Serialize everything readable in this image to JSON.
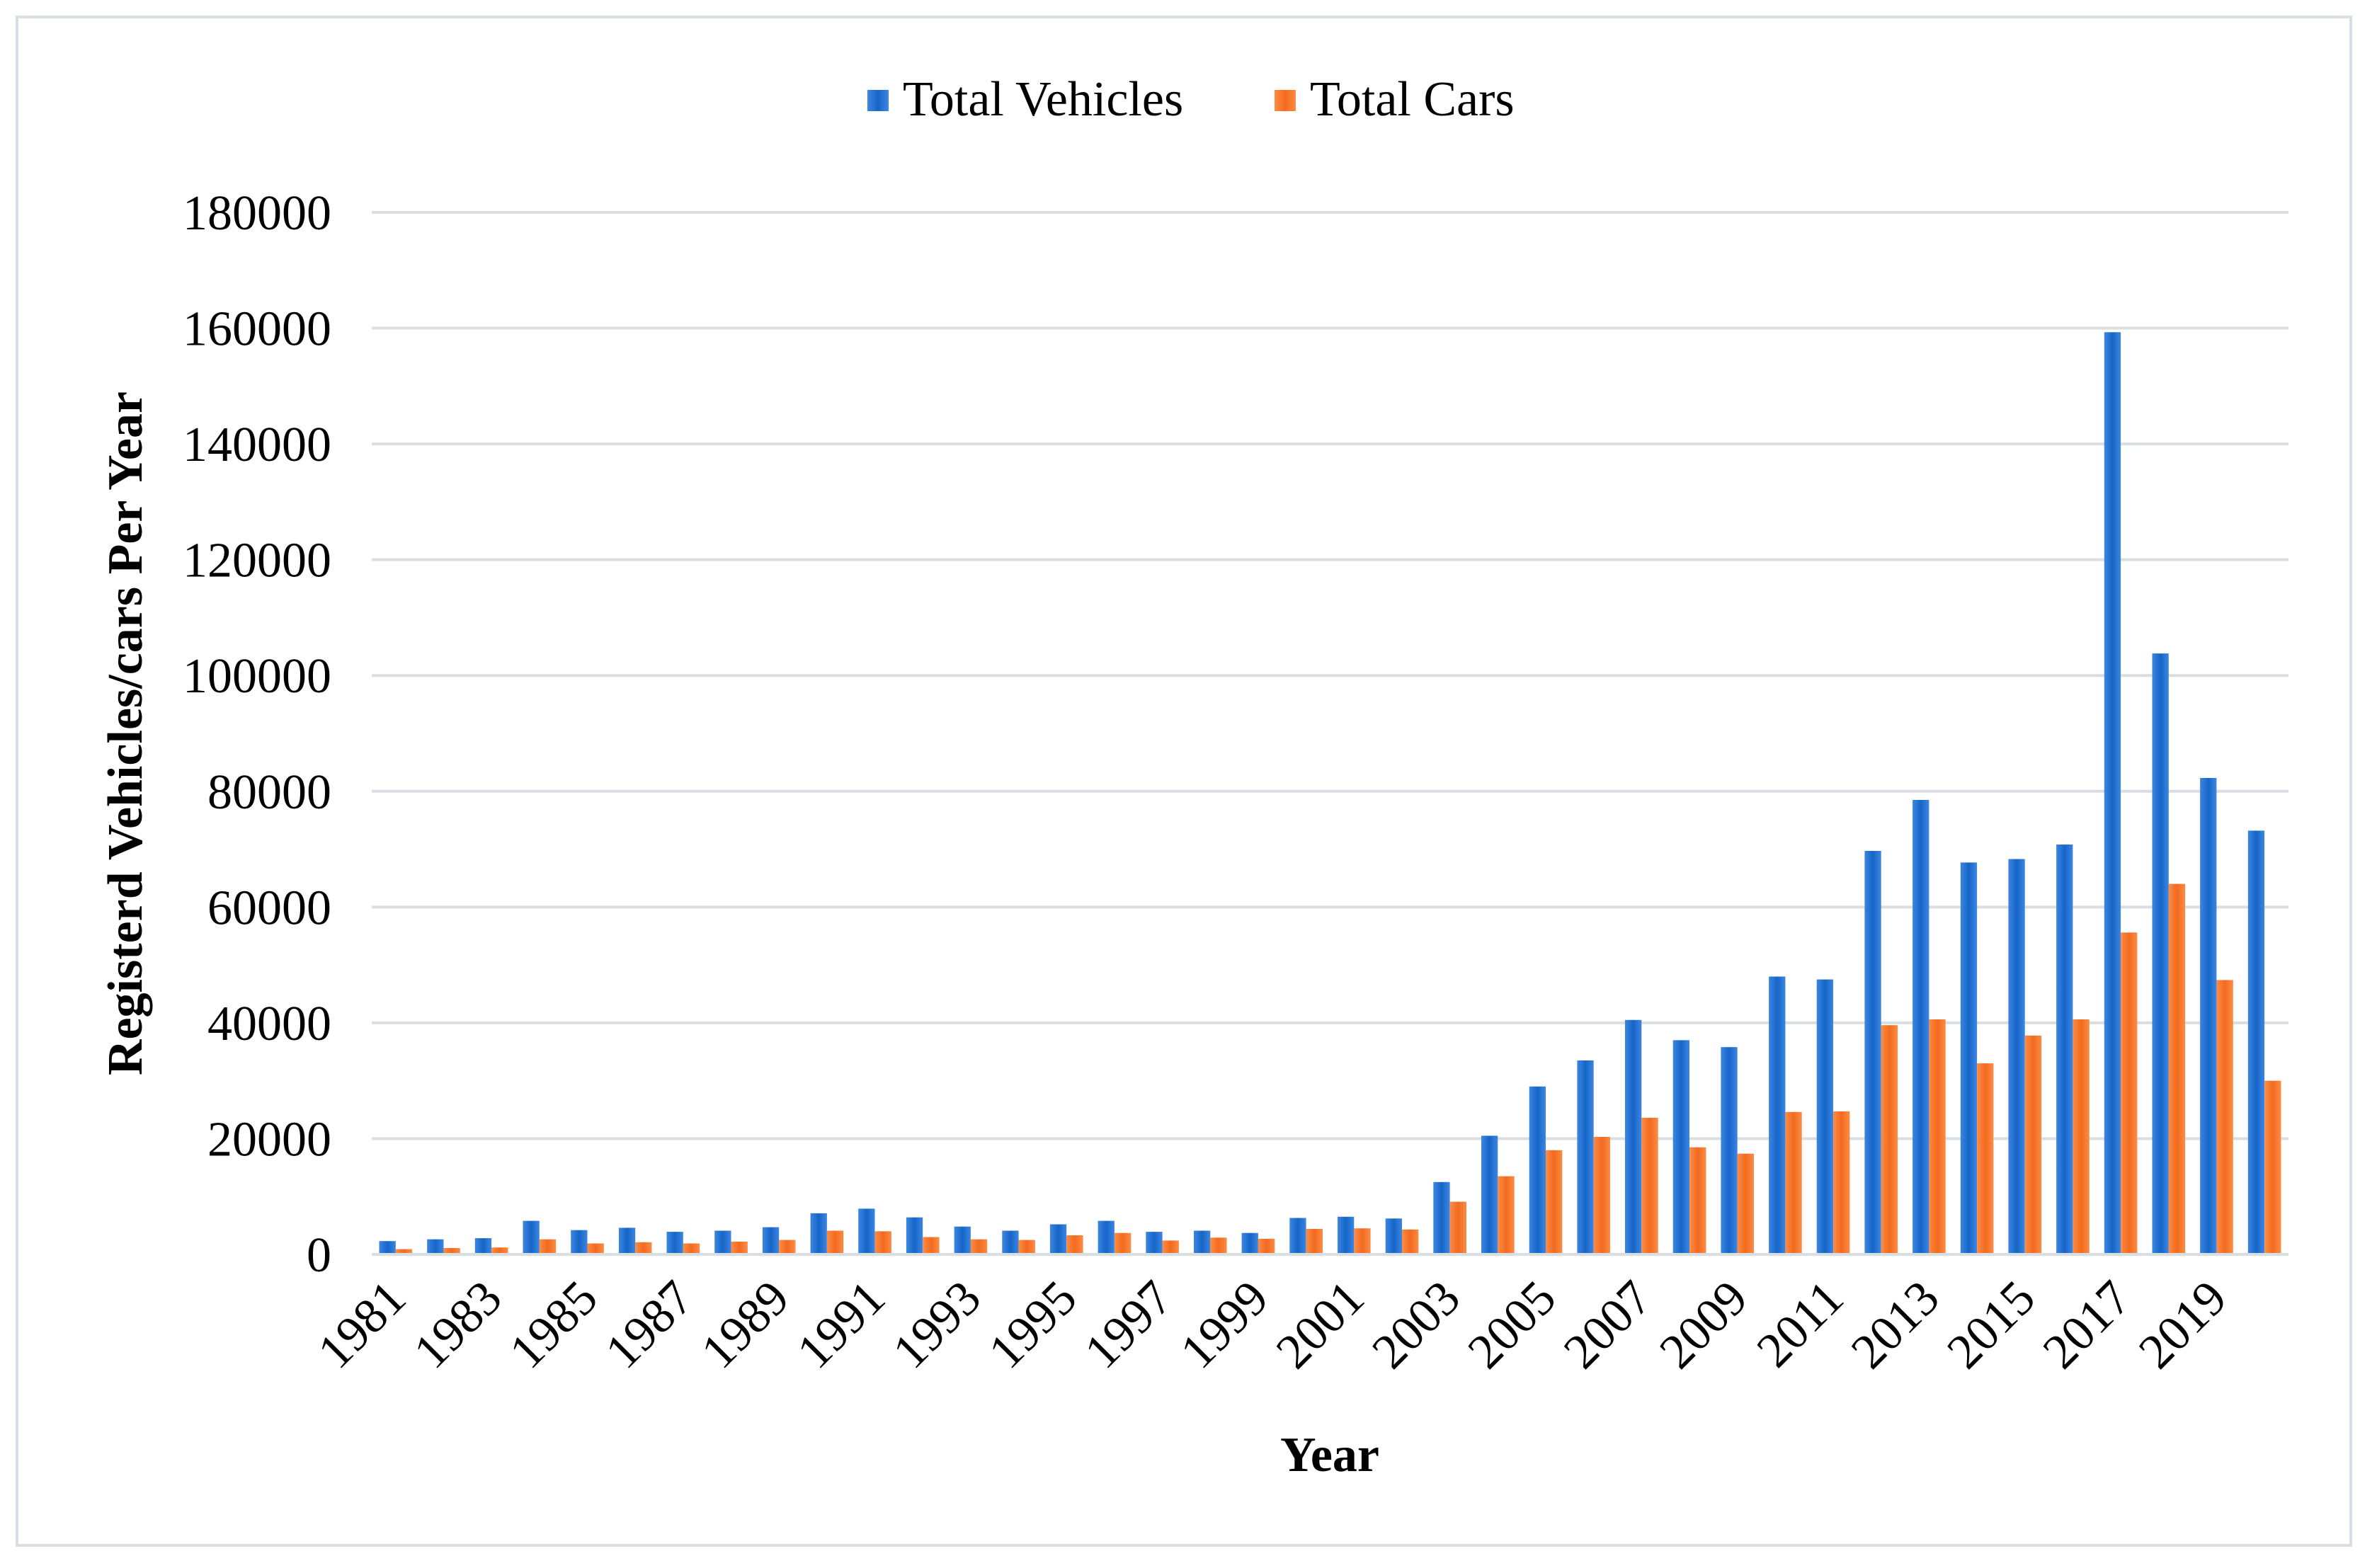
{
  "chart_data": {
    "type": "bar",
    "title": "",
    "xlabel": "Year",
    "ylabel": "Registerd Vehicles/cars Per Year",
    "ylim": [
      0,
      180000
    ],
    "yticks": [
      0,
      20000,
      40000,
      60000,
      80000,
      100000,
      120000,
      140000,
      160000,
      180000
    ],
    "grid": true,
    "legend_position": "top-center",
    "categories": [
      "1981",
      "1982",
      "1983",
      "1984",
      "1985",
      "1986",
      "1987",
      "1988",
      "1989",
      "1990",
      "1991",
      "1992",
      "1993",
      "1994",
      "1995",
      "1996",
      "1997",
      "1998",
      "1999",
      "2000",
      "2001",
      "2002",
      "2003",
      "2004",
      "2005",
      "2006",
      "2007",
      "2008",
      "2009",
      "2010",
      "2011",
      "2012",
      "2013",
      "2014",
      "2015",
      "2016",
      "2017",
      "2018",
      "2019",
      "2020"
    ],
    "tick_labels": [
      "1981",
      "1983",
      "1985",
      "1987",
      "1989",
      "1991",
      "1993",
      "1995",
      "1997",
      "1999",
      "2001",
      "2003",
      "2005",
      "2007",
      "2009",
      "2011",
      "2013",
      "2015",
      "2017",
      "2019"
    ],
    "series": [
      {
        "name": "Total Vehicles",
        "color": "#1f6fd1",
        "values": [
          2300,
          2600,
          2800,
          5800,
          4200,
          4600,
          3900,
          4100,
          4700,
          7100,
          7900,
          6400,
          4800,
          4100,
          5200,
          5800,
          3900,
          4100,
          3700,
          6300,
          6500,
          6200,
          12500,
          20500,
          29000,
          33500,
          40500,
          37000,
          35800,
          48000,
          47500,
          69700,
          78500,
          67700,
          68300,
          70800,
          159300,
          103800,
          82300,
          73200
        ]
      },
      {
        "name": "Total Cars",
        "color": "#f5762a",
        "values": [
          900,
          1100,
          1200,
          2600,
          1900,
          2100,
          1900,
          2200,
          2500,
          4100,
          4000,
          3000,
          2600,
          2500,
          3300,
          3700,
          2400,
          2900,
          2700,
          4400,
          4500,
          4300,
          9100,
          13500,
          18000,
          20300,
          23600,
          18500,
          17400,
          24600,
          24700,
          39600,
          40600,
          33000,
          37800,
          40600,
          55600,
          64000,
          47400,
          30000
        ]
      }
    ]
  }
}
